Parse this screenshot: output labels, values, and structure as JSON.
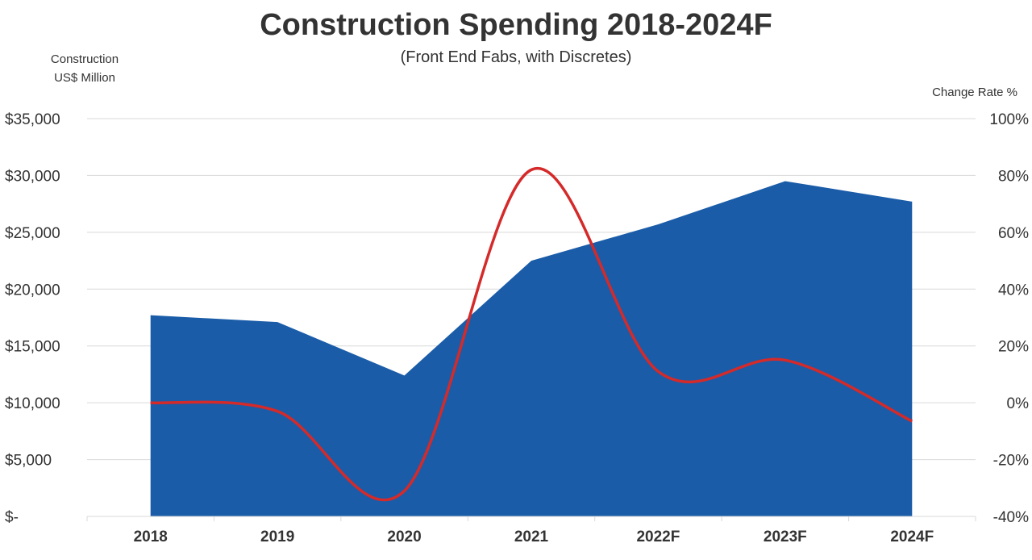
{
  "chart_data": {
    "type": "area+line",
    "title": "Construction Spending 2018-2024F",
    "subtitle": "(Front End Fabs, with Discretes)",
    "ylabel": [
      "Construction",
      "US$ Million"
    ],
    "y2label": "Change Rate %",
    "categories": [
      "2018",
      "2019",
      "2020",
      "2021",
      "2022F",
      "2023F",
      "2024F"
    ],
    "ylim": [
      0,
      35000
    ],
    "y2lim": [
      -40,
      100
    ],
    "yticks": [
      "$-",
      "$5,000",
      "$10,000",
      "$15,000",
      "$20,000",
      "$25,000",
      "$30,000",
      "$35,000"
    ],
    "y2ticks": [
      "-40%",
      "-20%",
      "0%",
      "20%",
      "40%",
      "60%",
      "80%",
      "100%"
    ],
    "grid": true,
    "series": [
      {
        "name": "Construction Spending (US$ Million)",
        "type": "area",
        "axis": "left",
        "color": "#1a5ca8",
        "values": [
          17700,
          17100,
          12400,
          22500,
          25700,
          29500,
          27700
        ]
      },
      {
        "name": "Change Rate %",
        "type": "line",
        "axis": "right",
        "color": "#d42a2a",
        "values": [
          0,
          -3,
          -31,
          82,
          11,
          15,
          -6.5
        ]
      }
    ]
  }
}
